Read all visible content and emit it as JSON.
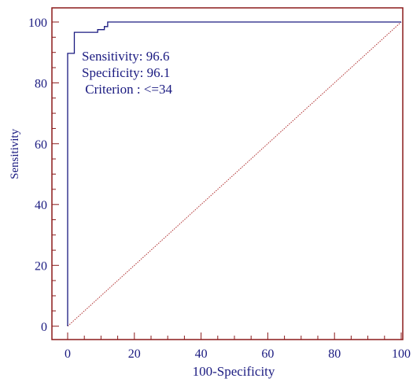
{
  "chart_data": {
    "type": "line",
    "xlabel": "100-Specificity",
    "ylabel": "Sensitivity",
    "xlim": [
      0,
      100
    ],
    "ylim": [
      0,
      100
    ],
    "x_ticks": [
      0,
      20,
      40,
      60,
      80,
      100
    ],
    "y_ticks": [
      0,
      20,
      40,
      60,
      80,
      100
    ],
    "series": [
      {
        "values": [
          {
            "x": 0,
            "y": 0
          },
          {
            "x": 0,
            "y": 89.7
          },
          {
            "x": 2,
            "y": 89.7
          },
          {
            "x": 2,
            "y": 96.6
          },
          {
            "x": 3.9,
            "y": 96.6
          },
          {
            "x": 3.9,
            "y": 96.6
          },
          {
            "x": 9,
            "y": 96.6
          },
          {
            "x": 9,
            "y": 97.5
          },
          {
            "x": 11,
            "y": 97.5
          },
          {
            "x": 11,
            "y": 98.5
          },
          {
            "x": 12,
            "y": 98.5
          },
          {
            "x": 12,
            "y": 100
          },
          {
            "x": 100,
            "y": 100
          }
        ]
      },
      {
        "values": [
          {
            "x": 0,
            "y": 0
          },
          {
            "x": 100,
            "y": 100
          }
        ]
      }
    ],
    "annotations": [
      "Sensitivity: 96.6",
      "Specificity: 96.1",
      " Criterion : <=34"
    ],
    "colors": {
      "frame": "#8b1a1a",
      "curve": "#1a1a80",
      "diagonal": "#b03030",
      "text": "#1a1a80"
    }
  }
}
